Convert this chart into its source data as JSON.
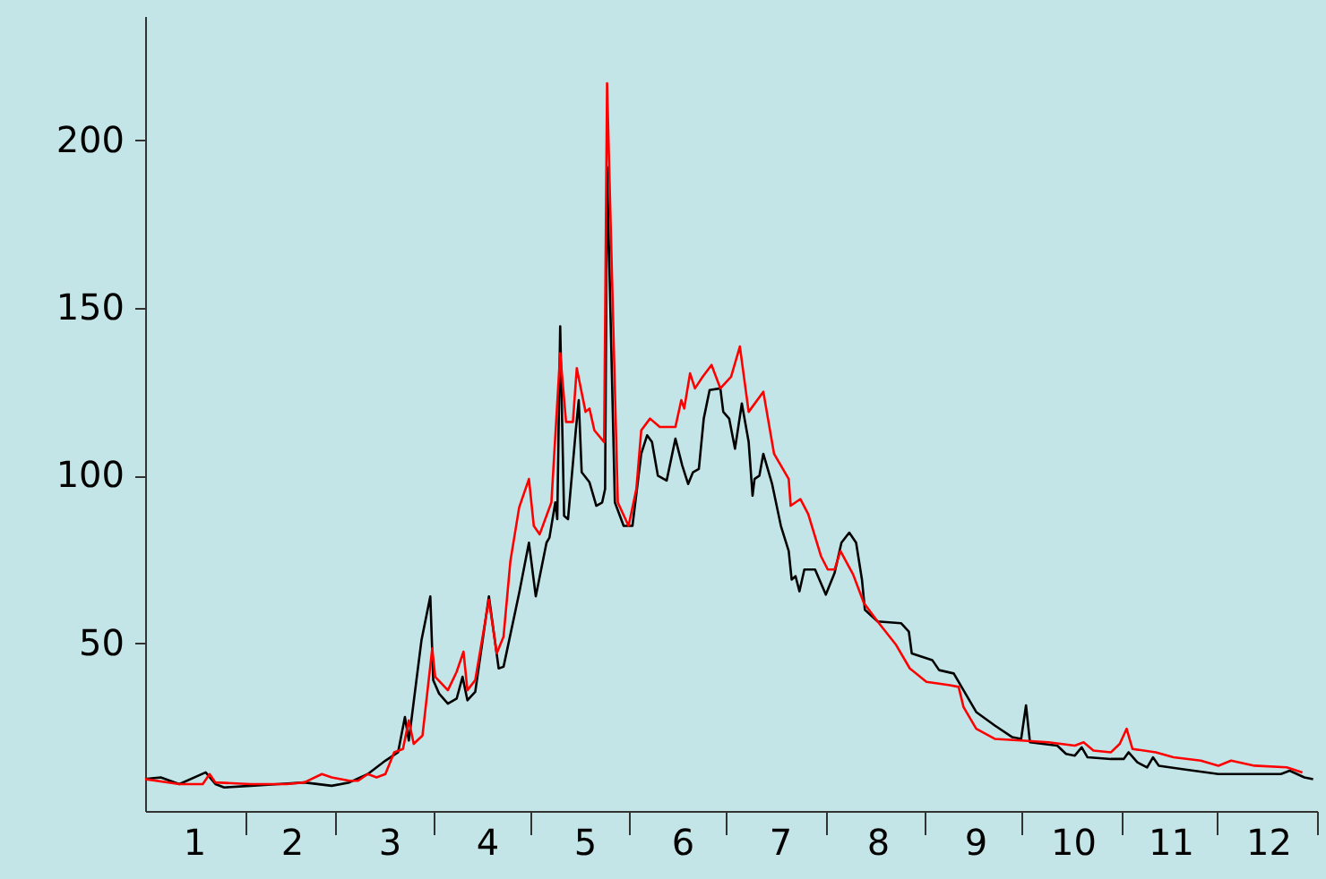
{
  "chart_data": {
    "type": "line",
    "xlim": [
      0.5,
      12.5
    ],
    "ylim": [
      0,
      237
    ],
    "yticks": [
      50,
      100,
      150,
      200
    ],
    "grid": false,
    "xticks": [
      1,
      2,
      3,
      4,
      5,
      6,
      7,
      8,
      9,
      10,
      11,
      12,
      {
        "value": 1.52,
        "label": null
      },
      {
        "value": 2.44,
        "label": null
      },
      {
        "value": 3.46,
        "label": null
      },
      {
        "value": 4.45,
        "label": null
      },
      {
        "value": 5.46,
        "label": null
      },
      {
        "value": 6.45,
        "label": null
      },
      {
        "value": 7.47,
        "label": null
      },
      {
        "value": 8.49,
        "label": null
      },
      {
        "value": 9.48,
        "label": null
      },
      {
        "value": 10.5,
        "label": null
      },
      {
        "value": 11.48,
        "label": null
      },
      {
        "value": 12.5,
        "label": null
      }
    ],
    "series": [
      {
        "color": "#000000",
        "x": [
          0.5,
          0.66,
          0.85,
          1.12,
          1.22,
          1.31,
          1.58,
          1.86,
          2.13,
          2.41,
          2.59,
          2.78,
          2.96,
          3.09,
          3.16,
          3.2,
          3.33,
          3.42,
          3.45,
          3.51,
          3.6,
          3.69,
          3.75,
          3.8,
          3.88,
          4.02,
          4.12,
          4.17,
          4.33,
          4.43,
          4.5,
          4.61,
          4.64,
          4.7,
          4.72,
          4.75,
          4.79,
          4.83,
          4.91,
          4.94,
          4.97,
          5.05,
          5.12,
          5.18,
          5.21,
          5.23,
          5.31,
          5.4,
          5.49,
          5.58,
          5.64,
          5.69,
          5.75,
          5.84,
          5.93,
          6.0,
          6.06,
          6.11,
          6.17,
          6.22,
          6.28,
          6.39,
          6.42,
          6.48,
          6.54,
          6.61,
          6.68,
          6.72,
          6.74,
          6.79,
          6.83,
          6.92,
          7.01,
          7.09,
          7.12,
          7.16,
          7.2,
          7.25,
          7.36,
          7.47,
          7.56,
          7.63,
          7.71,
          7.78,
          7.84,
          7.87,
          8.0,
          8.24,
          8.32,
          8.35,
          8.56,
          8.63,
          8.78,
          8.88,
          9.01,
          9.2,
          9.38,
          9.47,
          9.52,
          9.56,
          9.84,
          9.93,
          10.02,
          10.09,
          10.15,
          10.39,
          10.52,
          10.57,
          10.66,
          10.76,
          10.82,
          10.88,
          11.12,
          11.49,
          11.86,
          12.13,
          12.22,
          12.37,
          12.46
        ],
        "values": [
          9.5,
          10,
          8,
          11.5,
          8,
          7,
          7.5,
          8,
          8.5,
          7.5,
          8.5,
          11,
          15,
          17.5,
          28,
          21,
          51,
          64,
          39,
          35,
          32,
          33.5,
          40,
          33,
          35.5,
          64,
          42.5,
          43,
          65,
          80,
          64,
          80,
          81.5,
          92,
          87,
          144.5,
          88,
          87,
          113.5,
          122.5,
          101,
          98,
          91,
          92,
          96,
          192,
          92,
          85,
          85,
          106.5,
          112,
          110,
          100,
          98.5,
          111,
          103,
          97.5,
          101,
          102,
          117,
          125.5,
          126,
          119,
          117,
          108,
          121.5,
          110,
          94,
          99,
          100,
          106.5,
          97.5,
          85,
          77.5,
          69,
          70,
          65.5,
          72,
          72,
          64.5,
          71,
          80,
          83,
          80,
          69,
          60,
          56.5,
          56,
          53.5,
          47,
          45,
          42,
          41,
          36,
          29.5,
          25.5,
          22,
          21.5,
          31.5,
          20.5,
          19.5,
          17,
          16.5,
          19,
          16,
          15.5,
          15.5,
          17.5,
          14.5,
          13,
          16,
          13.5,
          12.5,
          11,
          11,
          11,
          12,
          10,
          9.5
        ]
      },
      {
        "color": "#ff0000",
        "x": [
          0.5,
          0.85,
          1.09,
          1.16,
          1.22,
          1.58,
          1.95,
          2.13,
          2.31,
          2.41,
          2.59,
          2.68,
          2.78,
          2.87,
          2.96,
          3.05,
          3.14,
          3.2,
          3.25,
          3.34,
          3.44,
          3.47,
          3.6,
          3.69,
          3.76,
          3.8,
          3.88,
          4.02,
          4.1,
          4.17,
          4.24,
          4.33,
          4.43,
          4.48,
          4.54,
          4.66,
          4.75,
          4.81,
          4.88,
          4.92,
          5.01,
          5.05,
          5.1,
          5.2,
          5.23,
          5.34,
          5.45,
          5.53,
          5.58,
          5.67,
          5.77,
          5.93,
          5.99,
          6.02,
          6.08,
          6.13,
          6.21,
          6.3,
          6.39,
          6.5,
          6.59,
          6.68,
          6.83,
          6.94,
          7.09,
          7.11,
          7.21,
          7.29,
          7.42,
          7.49,
          7.56,
          7.62,
          7.75,
          7.86,
          8.0,
          8.19,
          8.33,
          8.5,
          8.74,
          8.83,
          8.88,
          9.01,
          9.2,
          9.47,
          9.75,
          10.02,
          10.11,
          10.21,
          10.39,
          10.48,
          10.55,
          10.61,
          10.85,
          11.03,
          11.31,
          11.49,
          11.62,
          11.86,
          12.19,
          12.35
        ],
        "values": [
          9.5,
          8,
          8,
          11,
          8.5,
          8,
          8,
          8.5,
          11,
          10,
          9,
          9,
          11,
          10,
          11,
          17.5,
          18.5,
          27,
          20,
          22.5,
          48.5,
          40,
          36,
          41.5,
          47.5,
          36,
          39,
          63,
          47,
          52,
          74.5,
          90.5,
          99,
          85,
          82.5,
          92,
          136.5,
          116,
          116,
          132,
          119,
          120,
          113.5,
          110,
          217,
          92,
          85,
          96,
          113.5,
          117,
          114.5,
          114.5,
          122.5,
          120,
          130.5,
          126,
          129.5,
          133,
          126,
          129.5,
          138.5,
          119,
          125,
          106.5,
          99,
          91,
          93,
          88.5,
          76,
          72,
          72,
          77.5,
          70.5,
          62,
          56.5,
          49.5,
          42.5,
          38.5,
          37.5,
          37,
          31,
          24.5,
          21.5,
          21,
          20.5,
          19.5,
          20.5,
          18,
          17.5,
          20,
          24.5,
          18.5,
          17.5,
          16,
          15,
          13.5,
          15,
          13.5,
          13,
          11.5
        ]
      }
    ]
  }
}
